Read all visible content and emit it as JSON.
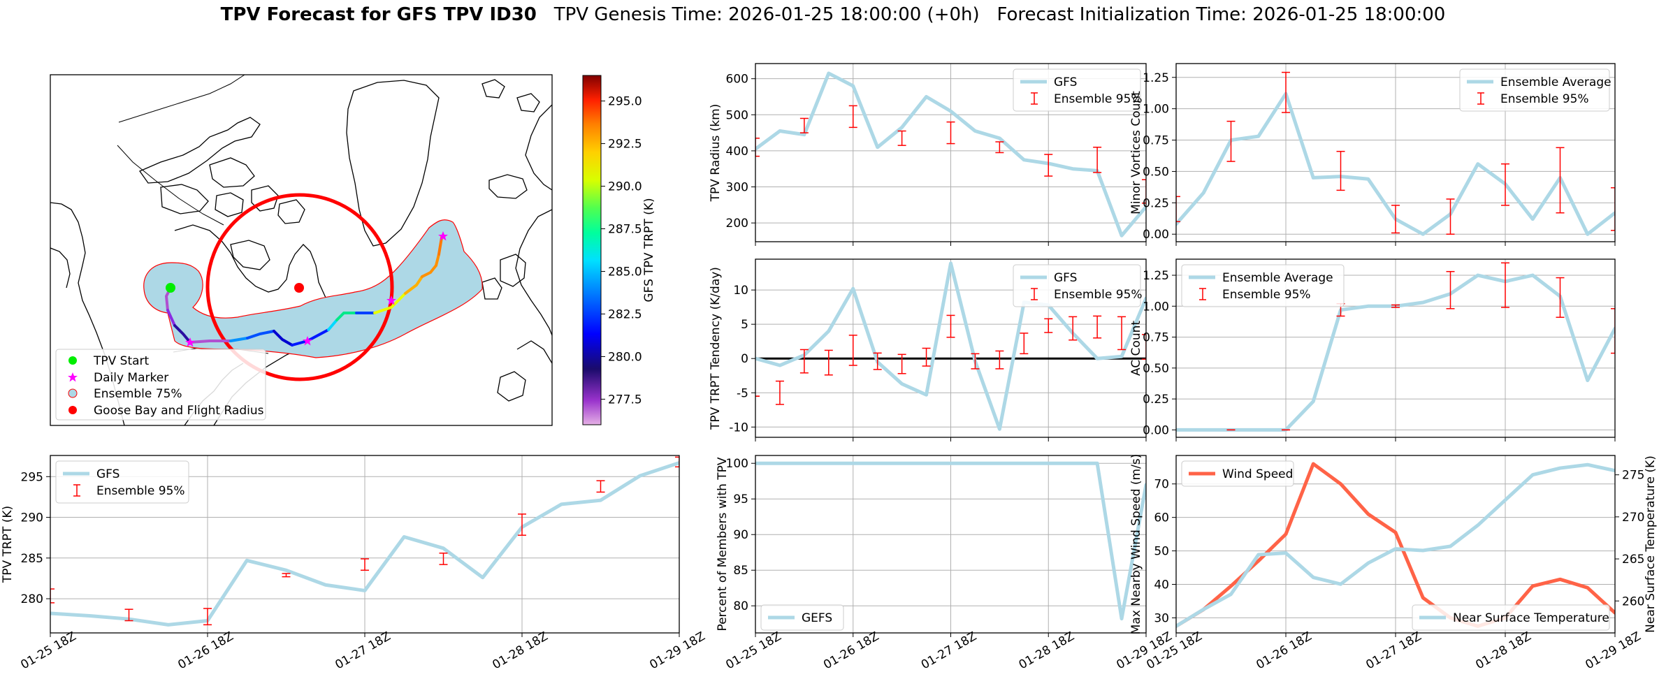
{
  "figure": {
    "title_bold": "TPV Forecast for GFS TPV ID30",
    "title_genesis": "TPV Genesis Time: 2026-01-25 18:00:00 (+0h)",
    "title_init": "Forecast Initialization Time: 2026-01-25 18:00:00"
  },
  "colors": {
    "series_blue": "#add8e6",
    "error_red": "#ff0000",
    "wind": "#ff6347",
    "temp_label": "#4169e1",
    "grid": "#b0b0b0"
  },
  "chart_data": [
    {
      "id": "map",
      "type": "map",
      "colorbar": {
        "label": "GFS TPV TRPT (K)",
        "ticks": [
          "277.5",
          "280.0",
          "282.5",
          "285.0",
          "287.5",
          "290.0",
          "292.5",
          "295.0"
        ],
        "range": [
          276.0,
          296.5
        ]
      },
      "legend": [
        {
          "label": "TPV Start",
          "marker": "green-circle"
        },
        {
          "label": "Daily Marker",
          "marker": "magenta-star"
        },
        {
          "label": "Ensemble 75%",
          "marker": "lightblue-circle"
        },
        {
          "label": "Goose Bay and Flight Radius",
          "marker": "red-circle"
        }
      ]
    },
    {
      "id": "trpt",
      "type": "line",
      "ylabel": "TPV TRPT (K)",
      "xlabel": "",
      "x_ticks": [
        "01-25 18Z",
        "01-26 18Z",
        "01-27 18Z",
        "01-28 18Z",
        "01-29 18Z"
      ],
      "ylim": [
        275.8,
        297.6
      ],
      "y_ticks": [
        280,
        285,
        290,
        295
      ],
      "grid": true,
      "legend_position": "upper-left",
      "series": [
        {
          "name": "GFS",
          "values": [
            278.2,
            277.9,
            277.5,
            276.8,
            277.3,
            284.7,
            283.5,
            281.7,
            281.0,
            287.6,
            286.2,
            282.6,
            288.8,
            291.6,
            292.1,
            295.1,
            296.7
          ]
        },
        {
          "name": "Ensemble 95%",
          "kind": "errorbar",
          "values": [
            280.3,
            null,
            278.0,
            null,
            277.8,
            null,
            282.9,
            null,
            284.2,
            null,
            284.9,
            null,
            289.1,
            null,
            293.8,
            null,
            296.8
          ],
          "low": [
            279.5,
            null,
            277.3,
            null,
            276.8,
            null,
            282.7,
            null,
            283.5,
            null,
            284.2,
            null,
            287.8,
            null,
            293.1,
            null,
            296.2
          ],
          "high": [
            281.2,
            null,
            278.7,
            null,
            278.8,
            null,
            283.1,
            null,
            284.9,
            null,
            285.6,
            null,
            290.4,
            null,
            294.5,
            null,
            297.4
          ]
        }
      ]
    },
    {
      "id": "radius",
      "type": "line",
      "ylabel": "TPV Radius (km)",
      "ylim": [
        148,
        642
      ],
      "y_ticks": [
        200,
        300,
        400,
        500,
        600
      ],
      "grid": true,
      "legend_position": "upper-right",
      "series": [
        {
          "name": "GFS",
          "values": [
            405,
            455,
            445,
            615,
            580,
            410,
            465,
            550,
            510,
            455,
            435,
            375,
            365,
            350,
            345,
            165,
            245
          ]
        },
        {
          "name": "Ensemble 95%",
          "kind": "errorbar",
          "values": [
            410,
            null,
            470,
            null,
            495,
            null,
            435,
            null,
            450,
            null,
            410,
            null,
            360,
            null,
            375,
            null,
            285
          ],
          "low": [
            385,
            null,
            450,
            null,
            465,
            null,
            415,
            null,
            420,
            null,
            395,
            null,
            330,
            null,
            340,
            null,
            255
          ],
          "high": [
            435,
            null,
            490,
            null,
            525,
            null,
            455,
            null,
            480,
            null,
            425,
            null,
            390,
            null,
            410,
            null,
            320
          ]
        }
      ]
    },
    {
      "id": "minor",
      "type": "line",
      "ylabel": "Minor Vortices Count",
      "ylim": [
        -0.06,
        1.36
      ],
      "y_ticks": [
        "0.00",
        "0.25",
        "0.50",
        "0.75",
        "1.00",
        "1.25"
      ],
      "grid": true,
      "legend_position": "upper-right",
      "series": [
        {
          "name": "Ensemble Average",
          "values": [
            0.08,
            0.33,
            0.75,
            0.78,
            1.12,
            0.45,
            0.46,
            0.44,
            0.12,
            0.0,
            0.16,
            0.56,
            0.4,
            0.12,
            0.45,
            0.0,
            0.17
          ]
        },
        {
          "name": "Ensemble 95%",
          "kind": "errorbar",
          "values": [
            0.2,
            null,
            0.74,
            null,
            1.13,
            null,
            0.5,
            null,
            0.12,
            null,
            0.14,
            null,
            0.39,
            null,
            0.43,
            null,
            0.2
          ],
          "low": [
            0.1,
            null,
            0.58,
            null,
            0.97,
            null,
            0.35,
            null,
            0.01,
            null,
            0.0,
            null,
            0.23,
            null,
            0.17,
            null,
            0.03
          ],
          "high": [
            0.3,
            null,
            0.9,
            null,
            1.29,
            null,
            0.66,
            null,
            0.23,
            null,
            0.28,
            null,
            0.56,
            null,
            0.69,
            null,
            0.37
          ]
        }
      ]
    },
    {
      "id": "tendency",
      "type": "line",
      "ylabel": "TPV TRPT Tendency (K/day)",
      "ylim": [
        -11.5,
        14.5
      ],
      "y_ticks": [
        -10,
        -5,
        0,
        5,
        10
      ],
      "grid": true,
      "zero_line": true,
      "legend_position": "upper-right",
      "series": [
        {
          "name": "GFS",
          "values": [
            0,
            -1,
            0.5,
            4,
            10.2,
            -0.5,
            -3.7,
            -5.3,
            13.9,
            -0.4,
            -10.3,
            8.2,
            7.8,
            3.7,
            0,
            0.3,
            8.8
          ]
        },
        {
          "name": "Ensemble 95%",
          "kind": "errorbar",
          "values": [
            -5.5,
            -5,
            -0.4,
            -0.6,
            1.2,
            -0.4,
            -0.8,
            -0.1,
            4.7,
            -0.4,
            -0.2,
            2.2,
            4.8,
            4.4,
            4.6,
            3.7,
            1.7
          ],
          "low": [
            -5.5,
            -6.7,
            -2.1,
            -2.4,
            -1,
            -1.6,
            -2.2,
            -1.1,
            3.1,
            -1.5,
            -1.5,
            0.7,
            3.8,
            2.7,
            3,
            1.3,
            -0.1
          ],
          "high": [
            -5.5,
            -3.3,
            1.3,
            1.2,
            3.4,
            0.8,
            0.6,
            1.5,
            6.3,
            0.7,
            1.1,
            3.7,
            5.8,
            6.1,
            6.2,
            6.1,
            3.5
          ]
        }
      ]
    },
    {
      "id": "ac",
      "type": "line",
      "ylabel": "AC Count",
      "ylim": [
        -0.06,
        1.38
      ],
      "y_ticks": [
        "0.00",
        "0.25",
        "0.50",
        "0.75",
        "1.00",
        "1.25"
      ],
      "grid": true,
      "legend_position": "upper-left",
      "series": [
        {
          "name": "Ensemble Average",
          "values": [
            0,
            0,
            0,
            0,
            0,
            0.23,
            0.97,
            1.0,
            1.0,
            1.03,
            1.1,
            1.25,
            1.2,
            1.25,
            1.08,
            0.4,
            0.82
          ]
        },
        {
          "name": "Ensemble 95%",
          "kind": "errorbar",
          "values": [
            null,
            null,
            0,
            null,
            0,
            null,
            0.97,
            null,
            1.0,
            null,
            1.13,
            null,
            1.17,
            null,
            1.07,
            null,
            0.8
          ],
          "low": [
            null,
            null,
            0,
            null,
            0,
            null,
            0.92,
            null,
            0.99,
            null,
            0.98,
            null,
            0.99,
            null,
            0.91,
            null,
            0.62
          ],
          "high": [
            null,
            null,
            0,
            null,
            0,
            null,
            1.02,
            null,
            1.01,
            null,
            1.28,
            null,
            1.35,
            null,
            1.23,
            null,
            0.98
          ]
        }
      ]
    },
    {
      "id": "members",
      "type": "line",
      "ylabel": "Percent of Members with TPV",
      "ylim": [
        76.2,
        101.1
      ],
      "y_ticks": [
        80,
        85,
        90,
        95,
        100
      ],
      "grid": true,
      "legend_position": "lower-left",
      "series": [
        {
          "name": "GEFS",
          "values": [
            100,
            100,
            100,
            100,
            100,
            100,
            100,
            100,
            100,
            100,
            100,
            100,
            100,
            100,
            100,
            78.2,
            97
          ]
        }
      ]
    },
    {
      "id": "wind_temp",
      "type": "line",
      "ylabel": "Max Nearby Wind Speed (m/s)",
      "ylabel_right": "Near Surface Temperature (K)",
      "ylim": [
        25.5,
        78.5
      ],
      "ylim_right": [
        256.2,
        277.3
      ],
      "y_ticks": [
        30,
        40,
        50,
        60,
        70
      ],
      "y_ticks_right": [
        260,
        265,
        270,
        275
      ],
      "grid": true,
      "series": [
        {
          "name": "Wind Speed",
          "axis": "left",
          "values": [
            27.5,
            32.5,
            39.5,
            47,
            55,
            76,
            70,
            61,
            55.5,
            36,
            30,
            27.5,
            30,
            39.5,
            41.5,
            39,
            31.5
          ]
        },
        {
          "name": "Near Surface Temperature",
          "axis": "right",
          "values": [
            257,
            259,
            260.8,
            265.5,
            265.7,
            262.8,
            262,
            264.5,
            266.2,
            266,
            266.5,
            269,
            272,
            275,
            275.8,
            276.2,
            275.5
          ]
        }
      ]
    }
  ]
}
